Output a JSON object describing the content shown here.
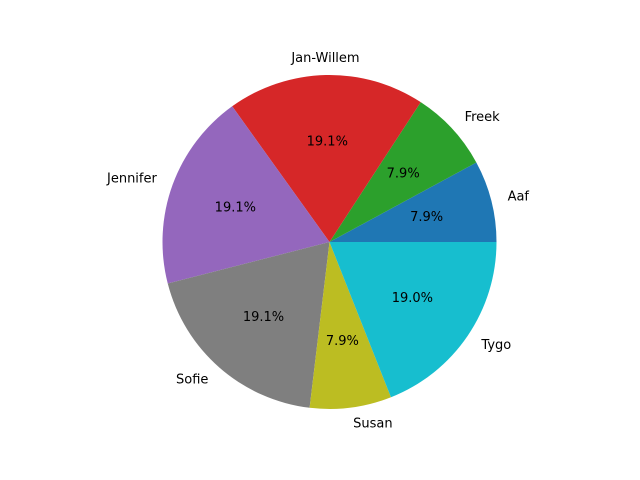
{
  "chart_data": {
    "type": "pie",
    "categories": [
      "Aaf",
      "Freek",
      "Jan-Willem",
      "Jennifer",
      "Sofie",
      "Susan",
      "Tygo"
    ],
    "values": [
      7.9,
      7.9,
      19.1,
      19.1,
      19.1,
      7.9,
      19.0
    ],
    "value_labels": [
      "7.9%",
      "7.9%",
      "19.1%",
      "19.1%",
      "19.1%",
      "7.9%",
      "19.0%"
    ],
    "colors": [
      "#1f77b4",
      "#2ca02c",
      "#d62728",
      "#9467bd",
      "#7f7f7f",
      "#bcbd22",
      "#17becf"
    ],
    "start_angle_deg": 0,
    "direction": "counterclockwise",
    "title": "",
    "legend": "none"
  }
}
